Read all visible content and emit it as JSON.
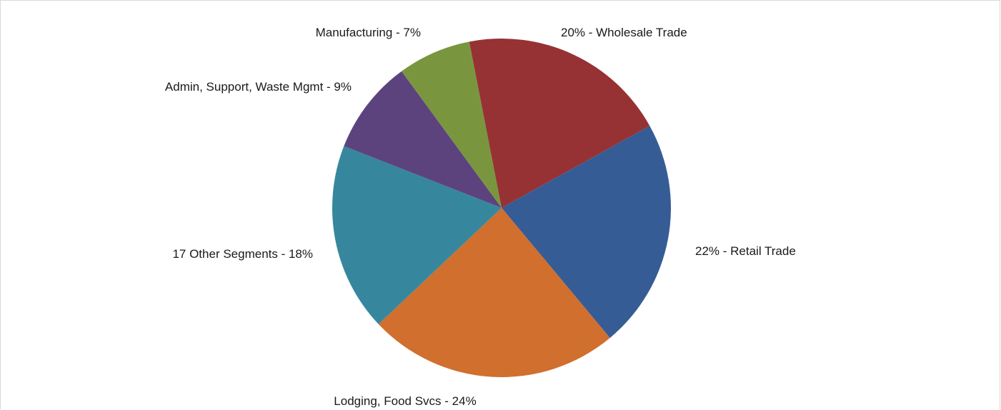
{
  "chart_data": {
    "type": "pie",
    "title": "",
    "start_angle_deg": 61,
    "direction": "clockwise",
    "slices": [
      {
        "name": "Retail Trade",
        "value": 22,
        "label": "22% - Retail Trade",
        "color": "#365C96"
      },
      {
        "name": "Lodging, Food Svcs",
        "value": 24,
        "label": "Lodging, Food Svcs - 24%",
        "color": "#D06F2E"
      },
      {
        "name": "17 Other Segments",
        "value": 18,
        "label": "17 Other Segments - 18%",
        "color": "#36879D"
      },
      {
        "name": "Admin, Support, Waste Mgmt",
        "value": 9,
        "label": "Admin, Support, Waste Mgmt - 9%",
        "color": "#5C437E"
      },
      {
        "name": "Manufacturing",
        "value": 7,
        "label": "Manufacturing - 7%",
        "color": "#79963F"
      },
      {
        "name": "Wholesale Trade",
        "value": 20,
        "label": "20% - Wholesale Trade",
        "color": "#963234"
      }
    ],
    "legend": "none"
  }
}
